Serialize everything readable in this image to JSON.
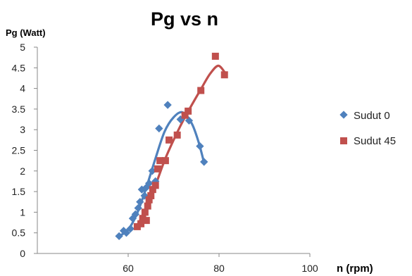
{
  "chart_data": {
    "type": "scatter",
    "title": "Pg vs n",
    "ylabel": "Pg (Watt)",
    "xlabel": "n (rpm)",
    "xlim": [
      40,
      100
    ],
    "ylim": [
      0,
      5
    ],
    "xticks": [
      "60",
      "80",
      "100"
    ],
    "xtick_values": [
      60,
      80,
      100
    ],
    "yticks": [
      "0",
      "0.5",
      "1",
      "1.5",
      "2",
      "2.5",
      "3",
      "3.5",
      "4",
      "4.5",
      "5"
    ],
    "ytick_values": [
      0,
      0.5,
      1,
      1.5,
      2,
      2.5,
      3,
      3.5,
      4,
      4.5,
      5
    ],
    "grid": false,
    "legend_position": "right",
    "series": [
      {
        "name": "Sudut 0",
        "marker": "diamond",
        "color": "#4f81bd",
        "points": [
          {
            "x": 58,
            "y": 0.42
          },
          {
            "x": 59,
            "y": 0.55
          },
          {
            "x": 59.6,
            "y": 0.5
          },
          {
            "x": 60.5,
            "y": 0.6
          },
          {
            "x": 61,
            "y": 0.85
          },
          {
            "x": 61.6,
            "y": 0.95
          },
          {
            "x": 62.2,
            "y": 1.1
          },
          {
            "x": 62.6,
            "y": 1.25
          },
          {
            "x": 63,
            "y": 1.55
          },
          {
            "x": 63.6,
            "y": 1.4
          },
          {
            "x": 64,
            "y": 1.6
          },
          {
            "x": 64.6,
            "y": 1.7
          },
          {
            "x": 65.3,
            "y": 2.0
          },
          {
            "x": 66,
            "y": 1.75
          },
          {
            "x": 66.8,
            "y": 3.03
          },
          {
            "x": 68.7,
            "y": 3.6
          },
          {
            "x": 71.5,
            "y": 3.25
          },
          {
            "x": 73.4,
            "y": 3.22
          },
          {
            "x": 75.8,
            "y": 2.6
          },
          {
            "x": 76.7,
            "y": 2.22
          }
        ],
        "trendline": [
          {
            "x": 58,
            "y": 0.42
          },
          {
            "x": 60,
            "y": 0.58
          },
          {
            "x": 62,
            "y": 0.98
          },
          {
            "x": 64,
            "y": 1.6
          },
          {
            "x": 66,
            "y": 2.3
          },
          {
            "x": 68,
            "y": 2.95
          },
          {
            "x": 70,
            "y": 3.3
          },
          {
            "x": 72,
            "y": 3.42
          },
          {
            "x": 74,
            "y": 3.15
          },
          {
            "x": 75.5,
            "y": 2.7
          },
          {
            "x": 76.7,
            "y": 2.2
          }
        ]
      },
      {
        "name": "Sudut 45",
        "marker": "square",
        "color": "#c0504d",
        "points": [
          {
            "x": 62,
            "y": 0.65
          },
          {
            "x": 62.8,
            "y": 0.72
          },
          {
            "x": 63.2,
            "y": 0.85
          },
          {
            "x": 63.7,
            "y": 1.0
          },
          {
            "x": 64,
            "y": 0.8
          },
          {
            "x": 64.3,
            "y": 1.15
          },
          {
            "x": 64.6,
            "y": 1.3
          },
          {
            "x": 65,
            "y": 1.4
          },
          {
            "x": 65.4,
            "y": 1.55
          },
          {
            "x": 66,
            "y": 1.65
          },
          {
            "x": 66.5,
            "y": 2.05
          },
          {
            "x": 67,
            "y": 2.25
          },
          {
            "x": 68.2,
            "y": 2.25
          },
          {
            "x": 69,
            "y": 2.75
          },
          {
            "x": 70.8,
            "y": 2.87
          },
          {
            "x": 72.5,
            "y": 3.35
          },
          {
            "x": 73.2,
            "y": 3.45
          },
          {
            "x": 76,
            "y": 3.95
          },
          {
            "x": 79.2,
            "y": 4.78
          },
          {
            "x": 81.2,
            "y": 4.33
          }
        ],
        "trendline": [
          {
            "x": 62,
            "y": 0.68
          },
          {
            "x": 64,
            "y": 1.1
          },
          {
            "x": 66,
            "y": 1.65
          },
          {
            "x": 68,
            "y": 2.25
          },
          {
            "x": 70,
            "y": 2.75
          },
          {
            "x": 72,
            "y": 3.2
          },
          {
            "x": 74,
            "y": 3.6
          },
          {
            "x": 76,
            "y": 3.98
          },
          {
            "x": 78,
            "y": 4.35
          },
          {
            "x": 79.8,
            "y": 4.55
          },
          {
            "x": 81.2,
            "y": 4.4
          }
        ]
      }
    ]
  }
}
